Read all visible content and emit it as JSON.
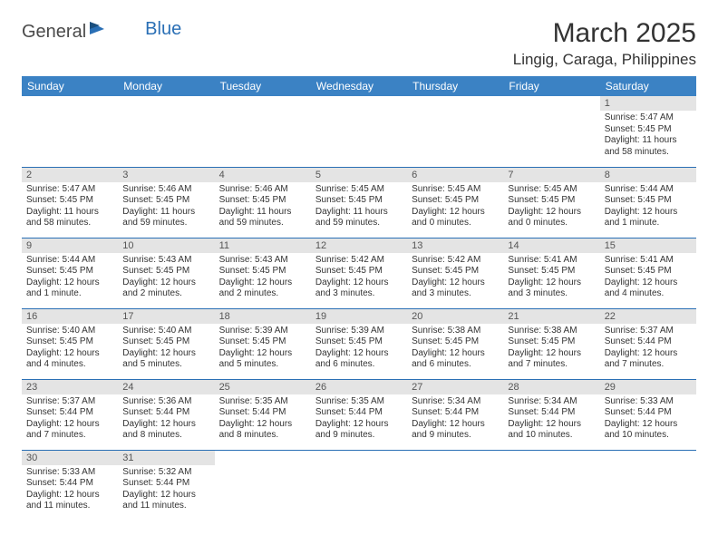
{
  "logo": {
    "general": "General",
    "blue": "Blue"
  },
  "title": "March 2025",
  "location": "Lingig, Caraga, Philippines",
  "colors": {
    "header_bg": "#3b82c4",
    "header_text": "#ffffff",
    "daynum_bg": "#e4e4e4",
    "border": "#2a6fb5",
    "text": "#333333",
    "logo_gray": "#4a4a4a",
    "logo_blue": "#2a6fb5",
    "page_bg": "#ffffff"
  },
  "typography": {
    "title_fontsize": 30,
    "location_fontsize": 17,
    "weekday_fontsize": 12,
    "daynum_fontsize": 11,
    "body_fontsize": 10
  },
  "weekdays": [
    "Sunday",
    "Monday",
    "Tuesday",
    "Wednesday",
    "Thursday",
    "Friday",
    "Saturday"
  ],
  "weeks": [
    [
      null,
      null,
      null,
      null,
      null,
      null,
      {
        "n": "1",
        "sr": "Sunrise: 5:47 AM",
        "ss": "Sunset: 5:45 PM",
        "dl": "Daylight: 11 hours and 58 minutes."
      }
    ],
    [
      {
        "n": "2",
        "sr": "Sunrise: 5:47 AM",
        "ss": "Sunset: 5:45 PM",
        "dl": "Daylight: 11 hours and 58 minutes."
      },
      {
        "n": "3",
        "sr": "Sunrise: 5:46 AM",
        "ss": "Sunset: 5:45 PM",
        "dl": "Daylight: 11 hours and 59 minutes."
      },
      {
        "n": "4",
        "sr": "Sunrise: 5:46 AM",
        "ss": "Sunset: 5:45 PM",
        "dl": "Daylight: 11 hours and 59 minutes."
      },
      {
        "n": "5",
        "sr": "Sunrise: 5:45 AM",
        "ss": "Sunset: 5:45 PM",
        "dl": "Daylight: 11 hours and 59 minutes."
      },
      {
        "n": "6",
        "sr": "Sunrise: 5:45 AM",
        "ss": "Sunset: 5:45 PM",
        "dl": "Daylight: 12 hours and 0 minutes."
      },
      {
        "n": "7",
        "sr": "Sunrise: 5:45 AM",
        "ss": "Sunset: 5:45 PM",
        "dl": "Daylight: 12 hours and 0 minutes."
      },
      {
        "n": "8",
        "sr": "Sunrise: 5:44 AM",
        "ss": "Sunset: 5:45 PM",
        "dl": "Daylight: 12 hours and 1 minute."
      }
    ],
    [
      {
        "n": "9",
        "sr": "Sunrise: 5:44 AM",
        "ss": "Sunset: 5:45 PM",
        "dl": "Daylight: 12 hours and 1 minute."
      },
      {
        "n": "10",
        "sr": "Sunrise: 5:43 AM",
        "ss": "Sunset: 5:45 PM",
        "dl": "Daylight: 12 hours and 2 minutes."
      },
      {
        "n": "11",
        "sr": "Sunrise: 5:43 AM",
        "ss": "Sunset: 5:45 PM",
        "dl": "Daylight: 12 hours and 2 minutes."
      },
      {
        "n": "12",
        "sr": "Sunrise: 5:42 AM",
        "ss": "Sunset: 5:45 PM",
        "dl": "Daylight: 12 hours and 3 minutes."
      },
      {
        "n": "13",
        "sr": "Sunrise: 5:42 AM",
        "ss": "Sunset: 5:45 PM",
        "dl": "Daylight: 12 hours and 3 minutes."
      },
      {
        "n": "14",
        "sr": "Sunrise: 5:41 AM",
        "ss": "Sunset: 5:45 PM",
        "dl": "Daylight: 12 hours and 3 minutes."
      },
      {
        "n": "15",
        "sr": "Sunrise: 5:41 AM",
        "ss": "Sunset: 5:45 PM",
        "dl": "Daylight: 12 hours and 4 minutes."
      }
    ],
    [
      {
        "n": "16",
        "sr": "Sunrise: 5:40 AM",
        "ss": "Sunset: 5:45 PM",
        "dl": "Daylight: 12 hours and 4 minutes."
      },
      {
        "n": "17",
        "sr": "Sunrise: 5:40 AM",
        "ss": "Sunset: 5:45 PM",
        "dl": "Daylight: 12 hours and 5 minutes."
      },
      {
        "n": "18",
        "sr": "Sunrise: 5:39 AM",
        "ss": "Sunset: 5:45 PM",
        "dl": "Daylight: 12 hours and 5 minutes."
      },
      {
        "n": "19",
        "sr": "Sunrise: 5:39 AM",
        "ss": "Sunset: 5:45 PM",
        "dl": "Daylight: 12 hours and 6 minutes."
      },
      {
        "n": "20",
        "sr": "Sunrise: 5:38 AM",
        "ss": "Sunset: 5:45 PM",
        "dl": "Daylight: 12 hours and 6 minutes."
      },
      {
        "n": "21",
        "sr": "Sunrise: 5:38 AM",
        "ss": "Sunset: 5:45 PM",
        "dl": "Daylight: 12 hours and 7 minutes."
      },
      {
        "n": "22",
        "sr": "Sunrise: 5:37 AM",
        "ss": "Sunset: 5:44 PM",
        "dl": "Daylight: 12 hours and 7 minutes."
      }
    ],
    [
      {
        "n": "23",
        "sr": "Sunrise: 5:37 AM",
        "ss": "Sunset: 5:44 PM",
        "dl": "Daylight: 12 hours and 7 minutes."
      },
      {
        "n": "24",
        "sr": "Sunrise: 5:36 AM",
        "ss": "Sunset: 5:44 PM",
        "dl": "Daylight: 12 hours and 8 minutes."
      },
      {
        "n": "25",
        "sr": "Sunrise: 5:35 AM",
        "ss": "Sunset: 5:44 PM",
        "dl": "Daylight: 12 hours and 8 minutes."
      },
      {
        "n": "26",
        "sr": "Sunrise: 5:35 AM",
        "ss": "Sunset: 5:44 PM",
        "dl": "Daylight: 12 hours and 9 minutes."
      },
      {
        "n": "27",
        "sr": "Sunrise: 5:34 AM",
        "ss": "Sunset: 5:44 PM",
        "dl": "Daylight: 12 hours and 9 minutes."
      },
      {
        "n": "28",
        "sr": "Sunrise: 5:34 AM",
        "ss": "Sunset: 5:44 PM",
        "dl": "Daylight: 12 hours and 10 minutes."
      },
      {
        "n": "29",
        "sr": "Sunrise: 5:33 AM",
        "ss": "Sunset: 5:44 PM",
        "dl": "Daylight: 12 hours and 10 minutes."
      }
    ],
    [
      {
        "n": "30",
        "sr": "Sunrise: 5:33 AM",
        "ss": "Sunset: 5:44 PM",
        "dl": "Daylight: 12 hours and 11 minutes."
      },
      {
        "n": "31",
        "sr": "Sunrise: 5:32 AM",
        "ss": "Sunset: 5:44 PM",
        "dl": "Daylight: 12 hours and 11 minutes."
      },
      null,
      null,
      null,
      null,
      null
    ]
  ]
}
